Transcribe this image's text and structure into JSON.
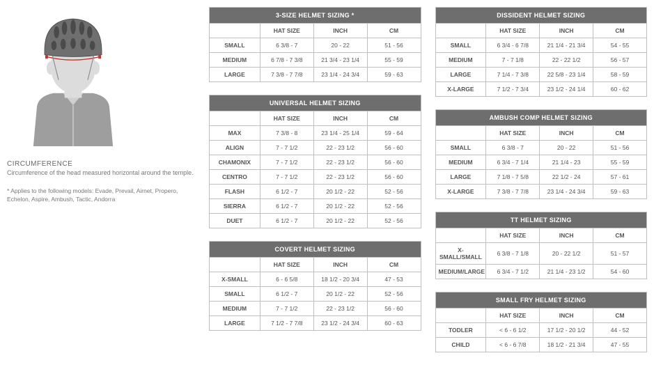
{
  "left": {
    "circ_title": "CIRCUMFERENCE",
    "circ_desc": "Circumference of the head measured horizontal around the temple.",
    "note": "* Applies to the following models: Evade, Prevail, Airnet, Propero, Echelon, Aspire, Ambush, Tactic, Andorra"
  },
  "col_headers": [
    "HAT SIZE",
    "INCH",
    "CM"
  ],
  "tables": {
    "three_size": {
      "title": "3-SIZE HELMET SIZING *",
      "rows": [
        {
          "label": "SMALL",
          "hat": "6 3/8 - 7",
          "inch": "20 - 22",
          "cm": "51 - 56"
        },
        {
          "label": "MEDIUM",
          "hat": "6 7/8 - 7 3/8",
          "inch": "21 3/4 - 23 1/4",
          "cm": "55 - 59"
        },
        {
          "label": "LARGE",
          "hat": "7 3/8 - 7 7/8",
          "inch": "23 1/4 - 24 3/4",
          "cm": "59 - 63"
        }
      ]
    },
    "universal": {
      "title": "UNIVERSAL HELMET SIZING",
      "rows": [
        {
          "label": "MAX",
          "hat": "7 3/8 - 8",
          "inch": "23 1/4 - 25 1/4",
          "cm": "59 - 64"
        },
        {
          "label": "ALIGN",
          "hat": "7 - 7 1/2",
          "inch": "22 - 23 1/2",
          "cm": "56 - 60"
        },
        {
          "label": "CHAMONIX",
          "hat": "7 - 7 1/2",
          "inch": "22 - 23 1/2",
          "cm": "56 - 60"
        },
        {
          "label": "CENTRO",
          "hat": "7 - 7 1/2",
          "inch": "22 - 23 1/2",
          "cm": "56 - 60"
        },
        {
          "label": "FLASH",
          "hat": "6 1/2 - 7",
          "inch": "20 1/2 - 22",
          "cm": "52 - 56"
        },
        {
          "label": "SIERRA",
          "hat": "6 1/2 - 7",
          "inch": "20 1/2 - 22",
          "cm": "52 - 56"
        },
        {
          "label": "DUET",
          "hat": "6 1/2 - 7",
          "inch": "20 1/2 - 22",
          "cm": "52 - 56"
        }
      ]
    },
    "covert": {
      "title": "COVERT HELMET SIZING",
      "rows": [
        {
          "label": "X-SMALL",
          "hat": "6 - 6 5/8",
          "inch": "18 1/2 - 20 3/4",
          "cm": "47 - 53"
        },
        {
          "label": "SMALL",
          "hat": "6 1/2 - 7",
          "inch": "20 1/2 - 22",
          "cm": "52 - 56"
        },
        {
          "label": "MEDIUM",
          "hat": "7 - 7 1/2",
          "inch": "22 - 23 1/2",
          "cm": "56 - 60"
        },
        {
          "label": "LARGE",
          "hat": "7 1/2 - 7 7/8",
          "inch": "23 1/2 - 24 3/4",
          "cm": "60 - 63"
        }
      ]
    },
    "dissident": {
      "title": "DISSIDENT HELMET SIZING",
      "rows": [
        {
          "label": "SMALL",
          "hat": "6 3/4 - 6 7/8",
          "inch": "21 1/4 - 21 3/4",
          "cm": "54 - 55"
        },
        {
          "label": "MEDIUM",
          "hat": "7 - 7 1/8",
          "inch": "22 - 22 1/2",
          "cm": "56 - 57"
        },
        {
          "label": "LARGE",
          "hat": "7 1/4 - 7 3/8",
          "inch": "22 5/8 - 23 1/4",
          "cm": "58 - 59"
        },
        {
          "label": "X-LARGE",
          "hat": "7 1/2 - 7 3/4",
          "inch": "23 1/2 - 24 1/4",
          "cm": "60 - 62"
        }
      ]
    },
    "ambush": {
      "title": "AMBUSH COMP HELMET SIZING",
      "rows": [
        {
          "label": "SMALL",
          "hat": "6 3/8 - 7",
          "inch": "20 - 22",
          "cm": "51 - 56"
        },
        {
          "label": "MEDIUM",
          "hat": "6 3/4 - 7 1/4",
          "inch": "21 1/4 - 23",
          "cm": "55 - 59"
        },
        {
          "label": "LARGE",
          "hat": "7 1/8 - 7 5/8",
          "inch": "22 1/2 - 24",
          "cm": "57 - 61"
        },
        {
          "label": "X-LARGE",
          "hat": "7 3/8 - 7 7/8",
          "inch": "23 1/4 - 24 3/4",
          "cm": "59 - 63"
        }
      ]
    },
    "tt": {
      "title": "TT HELMET SIZING",
      "rows": [
        {
          "label": "X-SMALL/SMALL",
          "hat": "6 3/8 - 7 1/8",
          "inch": "20 - 22 1/2",
          "cm": "51 - 57"
        },
        {
          "label": "MEDIUM/LARGE",
          "hat": "6 3/4 - 7 1/2",
          "inch": "21 1/4 - 23 1/2",
          "cm": "54 - 60"
        }
      ]
    },
    "small_fry": {
      "title": "SMALL FRY HELMET SIZING",
      "rows": [
        {
          "label": "TODLER",
          "hat": "< 6 - 6 1/2",
          "inch": "17 1/2 - 20 1/2",
          "cm": "44 - 52"
        },
        {
          "label": "CHILD",
          "hat": "< 6 - 6 7/8",
          "inch": "18 1/2 - 21 3/4",
          "cm": "47 - 55"
        }
      ]
    }
  },
  "colors": {
    "header_bg": "#6e6e6e",
    "border": "#bfbfbf",
    "text": "#555555",
    "highlight_line": "#c0392b"
  }
}
